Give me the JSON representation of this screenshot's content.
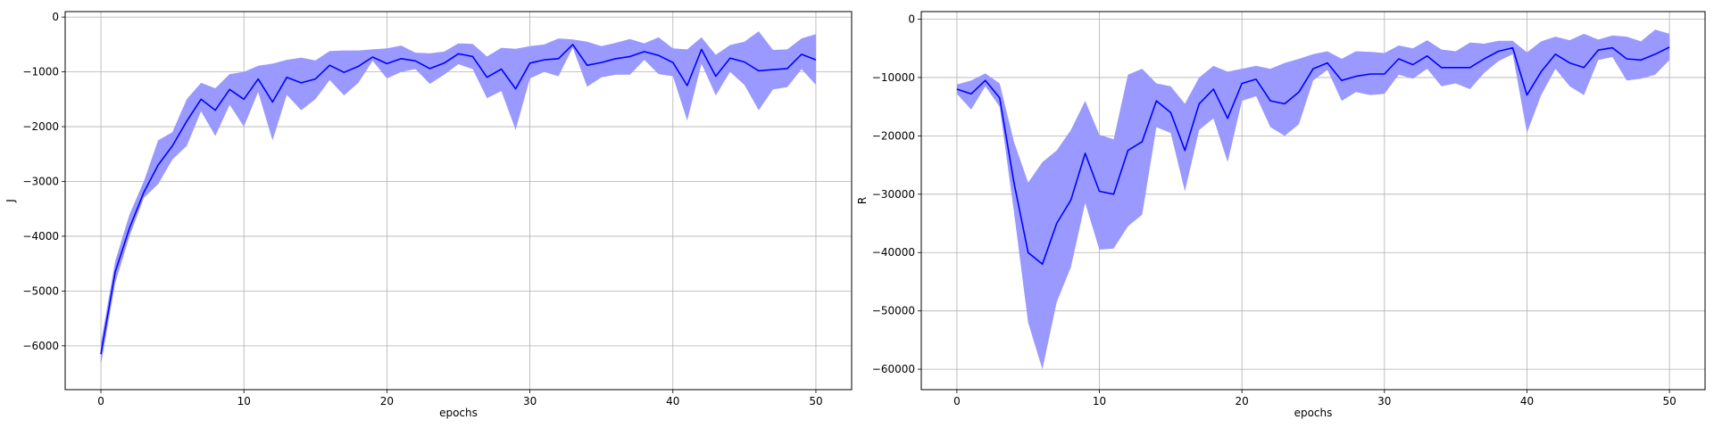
{
  "chart_data": [
    {
      "type": "line",
      "xlabel": "epochs",
      "ylabel": "J",
      "xlim": [
        -2.5,
        52.5
      ],
      "ylim": [
        -6800,
        100
      ],
      "xticks": [
        0,
        10,
        20,
        30,
        40,
        50
      ],
      "yticks": [
        0,
        -1000,
        -2000,
        -3000,
        -4000,
        -5000,
        -6000
      ],
      "grid": true,
      "colors": {
        "line": "#0000ff",
        "band": "#9999ff"
      },
      "x": [
        0,
        1,
        2,
        3,
        4,
        5,
        6,
        7,
        8,
        9,
        10,
        11,
        12,
        13,
        14,
        15,
        16,
        17,
        18,
        19,
        20,
        21,
        22,
        23,
        24,
        25,
        26,
        27,
        28,
        29,
        30,
        31,
        32,
        33,
        34,
        35,
        36,
        37,
        38,
        39,
        40,
        41,
        42,
        43,
        44,
        45,
        46,
        47,
        48,
        49,
        50
      ],
      "series": [
        {
          "values": [
            -6150,
            -4650,
            -3850,
            -3200,
            -2700,
            -2350,
            -1900,
            -1500,
            -1700,
            -1320,
            -1500,
            -1130,
            -1550,
            -1100,
            -1200,
            -1130,
            -880,
            -1010,
            -900,
            -730,
            -850,
            -760,
            -800,
            -940,
            -840,
            -670,
            -720,
            -1100,
            -950,
            -1310,
            -840,
            -780,
            -760,
            -500,
            -880,
            -830,
            -760,
            -720,
            -630,
            -700,
            -830,
            -1250,
            -590,
            -1080,
            -750,
            -820,
            -980,
            -960,
            -940,
            -680,
            -780
          ],
          "lower": [
            -6350,
            -4850,
            -4000,
            -3300,
            -3050,
            -2600,
            -2350,
            -1720,
            -2170,
            -1600,
            -2000,
            -1370,
            -2250,
            -1420,
            -1700,
            -1500,
            -1150,
            -1430,
            -1200,
            -800,
            -1120,
            -1000,
            -950,
            -1220,
            -1050,
            -860,
            -950,
            -1480,
            -1350,
            -2060,
            -1120,
            -1000,
            -1080,
            -560,
            -1270,
            -1100,
            -1050,
            -1050,
            -780,
            -1040,
            -1080,
            -1890,
            -850,
            -1430,
            -1000,
            -1240,
            -1700,
            -1320,
            -1280,
            -950,
            -1240
          ],
          "upper": [
            -5950,
            -4450,
            -3600,
            -3000,
            -2250,
            -2100,
            -1500,
            -1200,
            -1300,
            -1040,
            -1000,
            -890,
            -850,
            -780,
            -740,
            -790,
            -620,
            -610,
            -610,
            -590,
            -570,
            -520,
            -650,
            -660,
            -630,
            -480,
            -490,
            -720,
            -560,
            -580,
            -530,
            -500,
            -390,
            -410,
            -450,
            -530,
            -470,
            -400,
            -480,
            -370,
            -570,
            -590,
            -370,
            -690,
            -510,
            -450,
            -260,
            -600,
            -590,
            -390,
            -310
          ]
        }
      ]
    },
    {
      "type": "line",
      "xlabel": "epochs",
      "ylabel": "R",
      "xlim": [
        -2.5,
        52.5
      ],
      "ylim": [
        -63500,
        1300
      ],
      "xticks": [
        0,
        10,
        20,
        30,
        40,
        50
      ],
      "yticks": [
        0,
        -10000,
        -20000,
        -30000,
        -40000,
        -50000,
        -60000
      ],
      "grid": true,
      "colors": {
        "line": "#0000ff",
        "band": "#9999ff"
      },
      "x": [
        0,
        1,
        2,
        3,
        4,
        5,
        6,
        7,
        8,
        9,
        10,
        11,
        12,
        13,
        14,
        15,
        16,
        17,
        18,
        19,
        20,
        21,
        22,
        23,
        24,
        25,
        26,
        27,
        28,
        29,
        30,
        31,
        32,
        33,
        34,
        35,
        36,
        37,
        38,
        39,
        40,
        41,
        42,
        43,
        44,
        45,
        46,
        47,
        48,
        49,
        50
      ],
      "series": [
        {
          "values": [
            -12000,
            -12800,
            -10500,
            -13500,
            -28000,
            -40000,
            -42000,
            -35000,
            -31000,
            -23000,
            -29500,
            -30000,
            -22500,
            -21000,
            -14000,
            -16000,
            -22500,
            -14500,
            -12000,
            -17000,
            -11000,
            -10300,
            -14000,
            -14500,
            -12500,
            -8500,
            -7500,
            -10500,
            -9800,
            -9400,
            -9400,
            -6800,
            -7800,
            -6300,
            -8300,
            -8300,
            -8300,
            -6800,
            -5500,
            -4900,
            -13000,
            -9000,
            -6000,
            -7500,
            -8300,
            -5300,
            -4900,
            -6800,
            -7000,
            -6000,
            -4800
          ],
          "lower": [
            -12800,
            -15500,
            -11500,
            -15000,
            -33000,
            -52000,
            -60000,
            -48500,
            -42500,
            -31500,
            -39500,
            -39300,
            -35500,
            -33500,
            -18500,
            -19500,
            -29500,
            -19000,
            -17000,
            -24500,
            -14000,
            -13200,
            -18500,
            -20000,
            -18000,
            -10500,
            -8700,
            -14000,
            -12500,
            -13000,
            -12800,
            -9500,
            -10200,
            -8500,
            -11500,
            -11000,
            -12000,
            -9200,
            -7200,
            -6000,
            -19500,
            -13000,
            -8500,
            -11500,
            -13000,
            -7000,
            -6500,
            -10500,
            -10200,
            -9500,
            -7000
          ],
          "upper": [
            -11200,
            -10500,
            -9300,
            -11000,
            -21000,
            -28000,
            -24500,
            -22500,
            -19000,
            -14000,
            -19800,
            -20600,
            -9500,
            -8500,
            -11000,
            -11500,
            -14500,
            -10000,
            -8000,
            -9000,
            -8500,
            -8000,
            -8500,
            -7500,
            -6800,
            -6000,
            -5500,
            -6800,
            -5500,
            -5600,
            -5800,
            -4500,
            -5000,
            -3600,
            -5200,
            -5500,
            -4000,
            -4200,
            -3700,
            -3700,
            -5700,
            -3800,
            -3000,
            -3600,
            -2500,
            -3500,
            -2800,
            -3000,
            -3800,
            -1800,
            -2500
          ]
        }
      ]
    }
  ]
}
